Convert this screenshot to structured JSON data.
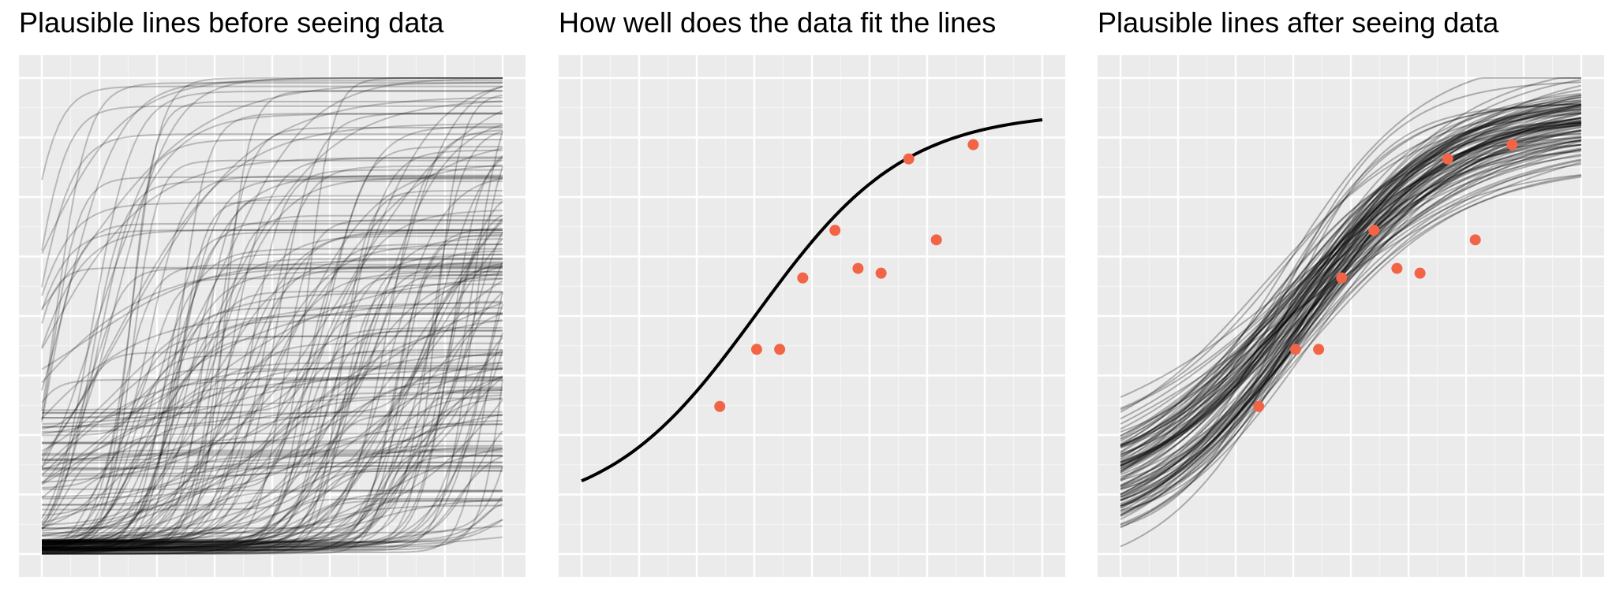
{
  "colors": {
    "panel_background": "#ebebeb",
    "grid_major": "#ffffff",
    "grid_minor": "#f5f5f5",
    "curve": "#000000",
    "points": "#f26446"
  },
  "chart_data": [
    {
      "type": "line",
      "title": "Plausible lines before seeing data",
      "xlabel": "",
      "ylabel": "",
      "xlim": [
        0,
        1
      ],
      "ylim": [
        0,
        1
      ],
      "grid": true,
      "axis_ticks_labels": false,
      "series_description": "about 200 random logistic curves, semi-transparent black",
      "curve_count": 200,
      "curve_opacity": 0.22
    },
    {
      "type": "scatter",
      "title": "How well does the data fit the lines",
      "xlabel": "",
      "ylabel": "",
      "xlim": [
        0,
        1
      ],
      "ylim": [
        0,
        1
      ],
      "grid": true,
      "axis_ticks_labels": false,
      "points": [
        {
          "x": 0.3,
          "y": 0.31
        },
        {
          "x": 0.38,
          "y": 0.43
        },
        {
          "x": 0.43,
          "y": 0.43
        },
        {
          "x": 0.48,
          "y": 0.58
        },
        {
          "x": 0.55,
          "y": 0.68
        },
        {
          "x": 0.6,
          "y": 0.6
        },
        {
          "x": 0.65,
          "y": 0.59
        },
        {
          "x": 0.71,
          "y": 0.83
        },
        {
          "x": 0.77,
          "y": 0.66
        },
        {
          "x": 0.85,
          "y": 0.86
        }
      ],
      "fitted_curve": {
        "form": "logistic",
        "lower": 0.08,
        "upper": 0.93,
        "midpoint": 0.38,
        "rate": 6.2
      }
    },
    {
      "type": "line",
      "title": "Plausible lines after seeing data",
      "xlabel": "",
      "ylabel": "",
      "xlim": [
        0,
        1
      ],
      "ylim": [
        0,
        1
      ],
      "grid": true,
      "axis_ticks_labels": false,
      "series_description": "about 100 posterior logistic curves, semi-transparent black, with the same data points overlaid",
      "curve_count": 100,
      "curve_opacity": 0.28,
      "points_same_as_panel": 2
    }
  ]
}
